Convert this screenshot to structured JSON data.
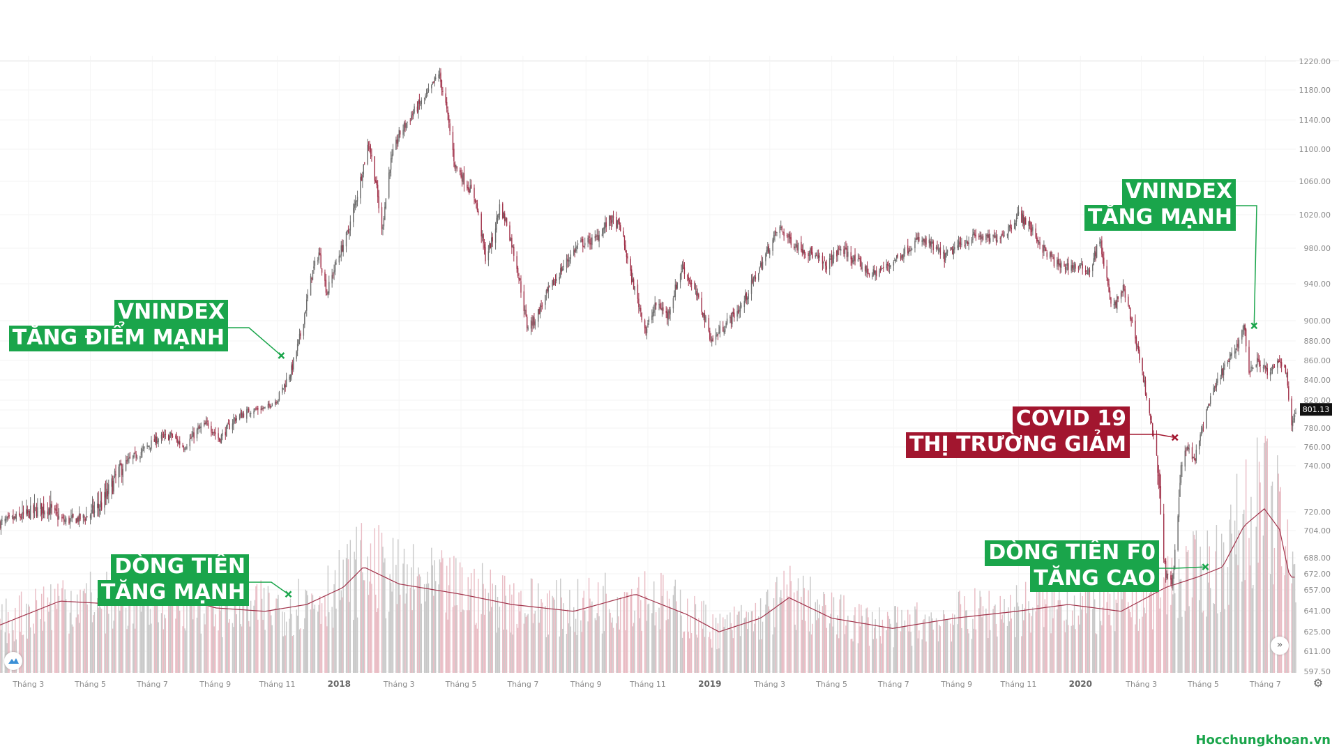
{
  "chart_data": {
    "type": "candlestick",
    "title": "",
    "y_ticks": [
      597.5,
      611,
      625,
      641,
      657,
      672,
      688,
      704,
      720,
      740,
      760,
      780,
      800,
      820,
      840,
      860,
      880,
      900,
      940,
      980,
      1020,
      1060,
      1100,
      1140,
      1180,
      1220
    ],
    "y_tick_labels": [
      "597.50",
      "611.00",
      "625.00",
      "641.00",
      "657.00",
      "672.00",
      "688.00",
      "704.00",
      "720.00",
      "740.00",
      "760.00",
      "780.00",
      "800.00",
      "820.00",
      "840.00",
      "860.00",
      "880.00",
      "900.00",
      "940.00",
      "980.00",
      "1020.00",
      "1060.00",
      "1100.00",
      "1140.00",
      "1180.00",
      "1220.00"
    ],
    "x_ticks": [
      {
        "label": "Tháng 3",
        "date": "2017-03",
        "major": false
      },
      {
        "label": "Tháng 5",
        "date": "2017-05",
        "major": false
      },
      {
        "label": "Tháng 7",
        "date": "2017-07",
        "major": false
      },
      {
        "label": "Tháng 9",
        "date": "2017-09",
        "major": false
      },
      {
        "label": "Tháng 11",
        "date": "2017-11",
        "major": false
      },
      {
        "label": "2018",
        "date": "2018-01",
        "major": true
      },
      {
        "label": "Tháng 3",
        "date": "2018-03",
        "major": false
      },
      {
        "label": "Tháng 5",
        "date": "2018-05",
        "major": false
      },
      {
        "label": "Tháng 7",
        "date": "2018-07",
        "major": false
      },
      {
        "label": "Tháng 9",
        "date": "2018-09",
        "major": false
      },
      {
        "label": "Tháng 11",
        "date": "2018-11",
        "major": false
      },
      {
        "label": "2019",
        "date": "2019-01",
        "major": true
      },
      {
        "label": "Tháng 3",
        "date": "2019-03",
        "major": false
      },
      {
        "label": "Tháng 5",
        "date": "2019-05",
        "major": false
      },
      {
        "label": "Tháng 7",
        "date": "2019-07",
        "major": false
      },
      {
        "label": "Tháng 9",
        "date": "2019-09",
        "major": false
      },
      {
        "label": "Tháng 11",
        "date": "2019-11",
        "major": false
      },
      {
        "label": "2020",
        "date": "2020-01",
        "major": true
      },
      {
        "label": "Tháng 3",
        "date": "2020-03",
        "major": false
      },
      {
        "label": "Tháng 5",
        "date": "2020-05",
        "major": false
      },
      {
        "label": "Tháng 7",
        "date": "2020-07",
        "major": false
      }
    ],
    "price_path": [
      {
        "date": "2017-02-01",
        "close": 710
      },
      {
        "date": "2017-03-01",
        "close": 718
      },
      {
        "date": "2017-03-20",
        "close": 722
      },
      {
        "date": "2017-04-05",
        "close": 712
      },
      {
        "date": "2017-04-25",
        "close": 715
      },
      {
        "date": "2017-05-15",
        "close": 725
      },
      {
        "date": "2017-06-01",
        "close": 740
      },
      {
        "date": "2017-06-20",
        "close": 755
      },
      {
        "date": "2017-07-05",
        "close": 768
      },
      {
        "date": "2017-07-20",
        "close": 772
      },
      {
        "date": "2017-08-01",
        "close": 760
      },
      {
        "date": "2017-08-15",
        "close": 778
      },
      {
        "date": "2017-08-25",
        "close": 785
      },
      {
        "date": "2017-09-05",
        "close": 768
      },
      {
        "date": "2017-09-20",
        "close": 790
      },
      {
        "date": "2017-10-05",
        "close": 800
      },
      {
        "date": "2017-10-20",
        "close": 804
      },
      {
        "date": "2017-11-01",
        "close": 820
      },
      {
        "date": "2017-11-15",
        "close": 850
      },
      {
        "date": "2017-11-25",
        "close": 890
      },
      {
        "date": "2017-12-05",
        "close": 950
      },
      {
        "date": "2017-12-12",
        "close": 975
      },
      {
        "date": "2017-12-20",
        "close": 930
      },
      {
        "date": "2017-12-28",
        "close": 960
      },
      {
        "date": "2018-01-10",
        "close": 1000
      },
      {
        "date": "2018-01-20",
        "close": 1050
      },
      {
        "date": "2018-01-30",
        "close": 1110
      },
      {
        "date": "2018-02-06",
        "close": 1060
      },
      {
        "date": "2018-02-12",
        "close": 1000
      },
      {
        "date": "2018-02-20",
        "close": 1080
      },
      {
        "date": "2018-03-01",
        "close": 1120
      },
      {
        "date": "2018-03-15",
        "close": 1150
      },
      {
        "date": "2018-03-30",
        "close": 1175
      },
      {
        "date": "2018-04-09",
        "close": 1204
      },
      {
        "date": "2018-04-16",
        "close": 1160
      },
      {
        "date": "2018-04-25",
        "close": 1080
      },
      {
        "date": "2018-05-05",
        "close": 1060
      },
      {
        "date": "2018-05-15",
        "close": 1040
      },
      {
        "date": "2018-05-25",
        "close": 970
      },
      {
        "date": "2018-06-01",
        "close": 990
      },
      {
        "date": "2018-06-08",
        "close": 1030
      },
      {
        "date": "2018-06-15",
        "close": 1010
      },
      {
        "date": "2018-06-25",
        "close": 960
      },
      {
        "date": "2018-07-05",
        "close": 895
      },
      {
        "date": "2018-07-12",
        "close": 900
      },
      {
        "date": "2018-07-25",
        "close": 930
      },
      {
        "date": "2018-08-10",
        "close": 960
      },
      {
        "date": "2018-08-25",
        "close": 985
      },
      {
        "date": "2018-09-10",
        "close": 990
      },
      {
        "date": "2018-09-25",
        "close": 1015
      },
      {
        "date": "2018-10-05",
        "close": 1005
      },
      {
        "date": "2018-10-15",
        "close": 950
      },
      {
        "date": "2018-10-30",
        "close": 890
      },
      {
        "date": "2018-11-10",
        "close": 920
      },
      {
        "date": "2018-11-20",
        "close": 905
      },
      {
        "date": "2018-12-05",
        "close": 960
      },
      {
        "date": "2018-12-20",
        "close": 925
      },
      {
        "date": "2019-01-03",
        "close": 880
      },
      {
        "date": "2019-01-15",
        "close": 895
      },
      {
        "date": "2019-02-01",
        "close": 915
      },
      {
        "date": "2019-02-20",
        "close": 960
      },
      {
        "date": "2019-03-10",
        "close": 1005
      },
      {
        "date": "2019-03-25",
        "close": 985
      },
      {
        "date": "2019-04-10",
        "close": 975
      },
      {
        "date": "2019-04-25",
        "close": 960
      },
      {
        "date": "2019-05-10",
        "close": 980
      },
      {
        "date": "2019-05-25",
        "close": 965
      },
      {
        "date": "2019-06-10",
        "close": 950
      },
      {
        "date": "2019-06-25",
        "close": 960
      },
      {
        "date": "2019-07-10",
        "close": 975
      },
      {
        "date": "2019-07-25",
        "close": 990
      },
      {
        "date": "2019-08-05",
        "close": 985
      },
      {
        "date": "2019-08-20",
        "close": 970
      },
      {
        "date": "2019-09-05",
        "close": 985
      },
      {
        "date": "2019-09-20",
        "close": 995
      },
      {
        "date": "2019-10-05",
        "close": 990
      },
      {
        "date": "2019-10-20",
        "close": 1000
      },
      {
        "date": "2019-11-01",
        "close": 1020
      },
      {
        "date": "2019-11-10",
        "close": 1010
      },
      {
        "date": "2019-11-25",
        "close": 980
      },
      {
        "date": "2019-12-10",
        "close": 960
      },
      {
        "date": "2019-12-25",
        "close": 960
      },
      {
        "date": "2020-01-10",
        "close": 955
      },
      {
        "date": "2020-01-20",
        "close": 990
      },
      {
        "date": "2020-02-01",
        "close": 910
      },
      {
        "date": "2020-02-12",
        "close": 935
      },
      {
        "date": "2020-02-25",
        "close": 880
      },
      {
        "date": "2020-03-05",
        "close": 830
      },
      {
        "date": "2020-03-12",
        "close": 775
      },
      {
        "date": "2020-03-20",
        "close": 720
      },
      {
        "date": "2020-03-25",
        "close": 670
      },
      {
        "date": "2020-03-31",
        "close": 662
      },
      {
        "date": "2020-04-07",
        "close": 730
      },
      {
        "date": "2020-04-15",
        "close": 760
      },
      {
        "date": "2020-04-22",
        "close": 745
      },
      {
        "date": "2020-04-28",
        "close": 770
      },
      {
        "date": "2020-05-08",
        "close": 820
      },
      {
        "date": "2020-05-20",
        "close": 850
      },
      {
        "date": "2020-05-30",
        "close": 865
      },
      {
        "date": "2020-06-10",
        "close": 895
      },
      {
        "date": "2020-06-15",
        "close": 850
      },
      {
        "date": "2020-06-25",
        "close": 860
      },
      {
        "date": "2020-07-05",
        "close": 845
      },
      {
        "date": "2020-07-15",
        "close": 860
      },
      {
        "date": "2020-07-22",
        "close": 850
      },
      {
        "date": "2020-07-27",
        "close": 780
      },
      {
        "date": "2020-07-31",
        "close": 801.13
      }
    ],
    "last_price": "801.13",
    "volume_ma_path": [
      {
        "date": "2017-02-01",
        "v": 0.28
      },
      {
        "date": "2017-04-01",
        "v": 0.42
      },
      {
        "date": "2017-06-01",
        "v": 0.4
      },
      {
        "date": "2017-07-20",
        "v": 0.46
      },
      {
        "date": "2017-09-01",
        "v": 0.38
      },
      {
        "date": "2017-10-20",
        "v": 0.36
      },
      {
        "date": "2017-11-30",
        "v": 0.4
      },
      {
        "date": "2018-01-05",
        "v": 0.5
      },
      {
        "date": "2018-01-25",
        "v": 0.62
      },
      {
        "date": "2018-03-01",
        "v": 0.52
      },
      {
        "date": "2018-05-01",
        "v": 0.46
      },
      {
        "date": "2018-06-20",
        "v": 0.4
      },
      {
        "date": "2018-08-20",
        "v": 0.36
      },
      {
        "date": "2018-10-20",
        "v": 0.46
      },
      {
        "date": "2018-12-10",
        "v": 0.34
      },
      {
        "date": "2019-01-10",
        "v": 0.24
      },
      {
        "date": "2019-02-20",
        "v": 0.32
      },
      {
        "date": "2019-03-20",
        "v": 0.44
      },
      {
        "date": "2019-05-01",
        "v": 0.32
      },
      {
        "date": "2019-06-30",
        "v": 0.26
      },
      {
        "date": "2019-08-30",
        "v": 0.32
      },
      {
        "date": "2019-10-30",
        "v": 0.36
      },
      {
        "date": "2019-12-20",
        "v": 0.4
      },
      {
        "date": "2020-02-10",
        "v": 0.36
      },
      {
        "date": "2020-03-25",
        "v": 0.5
      },
      {
        "date": "2020-04-25",
        "v": 0.56
      },
      {
        "date": "2020-05-20",
        "v": 0.62
      },
      {
        "date": "2020-06-10",
        "v": 0.86
      },
      {
        "date": "2020-06-30",
        "v": 0.96
      },
      {
        "date": "2020-07-15",
        "v": 0.84
      },
      {
        "date": "2020-07-25",
        "v": 0.56
      },
      {
        "date": "2020-07-31",
        "v": 0.56
      }
    ],
    "annotations": [
      {
        "id": "vn-rise-2017",
        "lines": [
          "VNINDEX",
          "TĂNG ĐIỂM MẠNH"
        ],
        "color": "green",
        "date": "2017-11-05",
        "value": 865
      },
      {
        "id": "money-rise-2017",
        "lines": [
          "DÒNG TIỀN",
          "TĂNG MẠNH"
        ],
        "color": "green",
        "date": "2017-11-12",
        "volume": 0.46
      },
      {
        "id": "covid",
        "lines": [
          "COVID 19",
          "THỊ TRƯỜNG GIẢM"
        ],
        "color": "red",
        "date": "2020-04-03",
        "value": 770
      },
      {
        "id": "vn-rise-2020",
        "lines": [
          "VNINDEX",
          "TĂNG MẠNH"
        ],
        "color": "green",
        "date": "2020-06-20",
        "value": 895
      },
      {
        "id": "f0-money",
        "lines": [
          "DÒNG TIỀN F0",
          "TĂNG CAO"
        ],
        "color": "green",
        "date": "2020-05-03",
        "volume": 0.62
      }
    ],
    "colors": {
      "up": "#6b6b6b",
      "down": "#a1324a",
      "volume_up": "#c9c9c9",
      "volume_down": "#e9bcc4",
      "volume_ma": "#a1324a",
      "annotation_green": "#1aa54b",
      "annotation_red": "#a2162f"
    },
    "grid": true
  },
  "watermark": "Hocchungkhoan.vn",
  "icons": {
    "logo": "chart-logo-icon",
    "scroll": "scroll-right-icon",
    "settings": "gear-icon"
  }
}
